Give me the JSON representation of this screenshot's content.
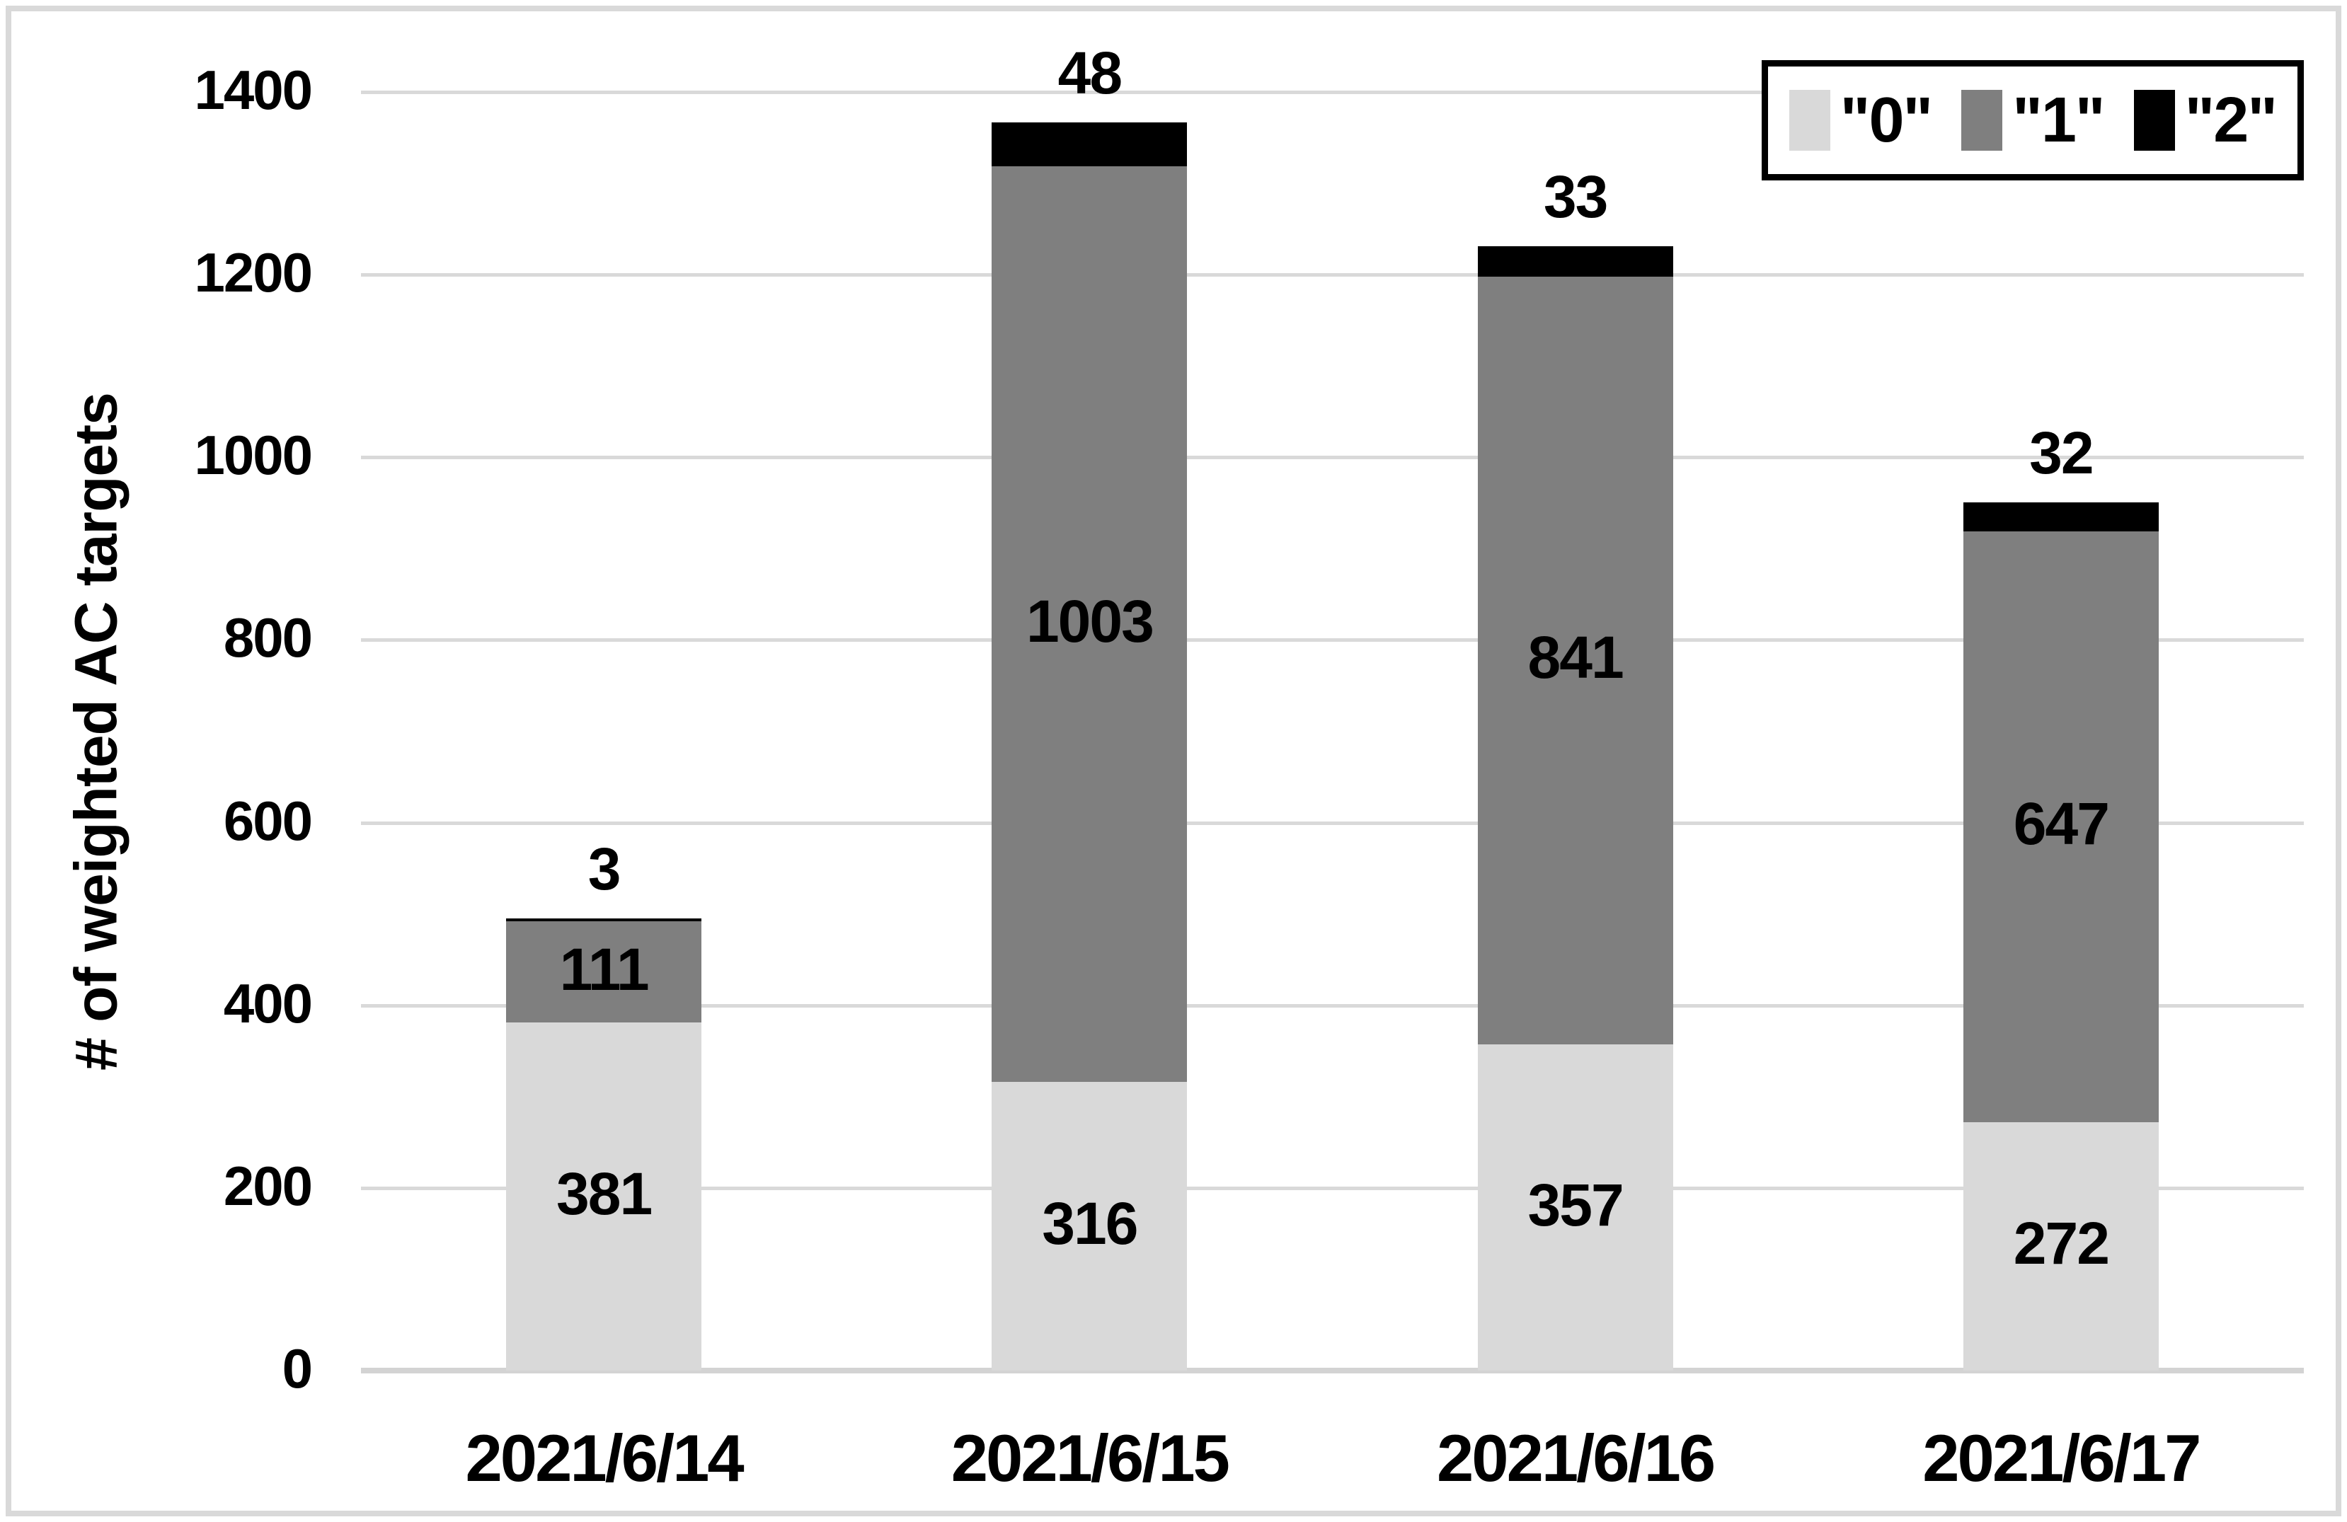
{
  "chart": {
    "background": "#ffffff",
    "frame_color": "#d9d9d9",
    "gridline_color": "#d9d9d9",
    "axisline_color": "#d3d3d3",
    "text_color": "#000000",
    "legend_border_color": "#000000"
  },
  "chart_data": {
    "type": "bar",
    "stacked": true,
    "title": "",
    "xlabel": "",
    "ylabel": "# of weighted AC targets",
    "categories": [
      "2021/6/14",
      "2021/6/15",
      "2021/6/16",
      "2021/6/17"
    ],
    "series": [
      {
        "name": "\"0\"",
        "color": "#d9d9d9",
        "values": [
          381,
          316,
          357,
          272
        ]
      },
      {
        "name": "\"1\"",
        "color": "#7f7f7f",
        "values": [
          111,
          1003,
          841,
          647
        ]
      },
      {
        "name": "\"2\"",
        "color": "#000000",
        "values": [
          3,
          48,
          33,
          32
        ]
      }
    ],
    "totals": [
      495,
      1367,
      1231,
      951
    ],
    "ylim": [
      0,
      1400
    ],
    "yticks": [
      "0",
      "200",
      "400",
      "600",
      "800",
      "1000",
      "1200",
      "1400"
    ],
    "grid": "horizontal",
    "legend_position": "top-right",
    "label_style": "values inside segments, top segment value above bar"
  }
}
